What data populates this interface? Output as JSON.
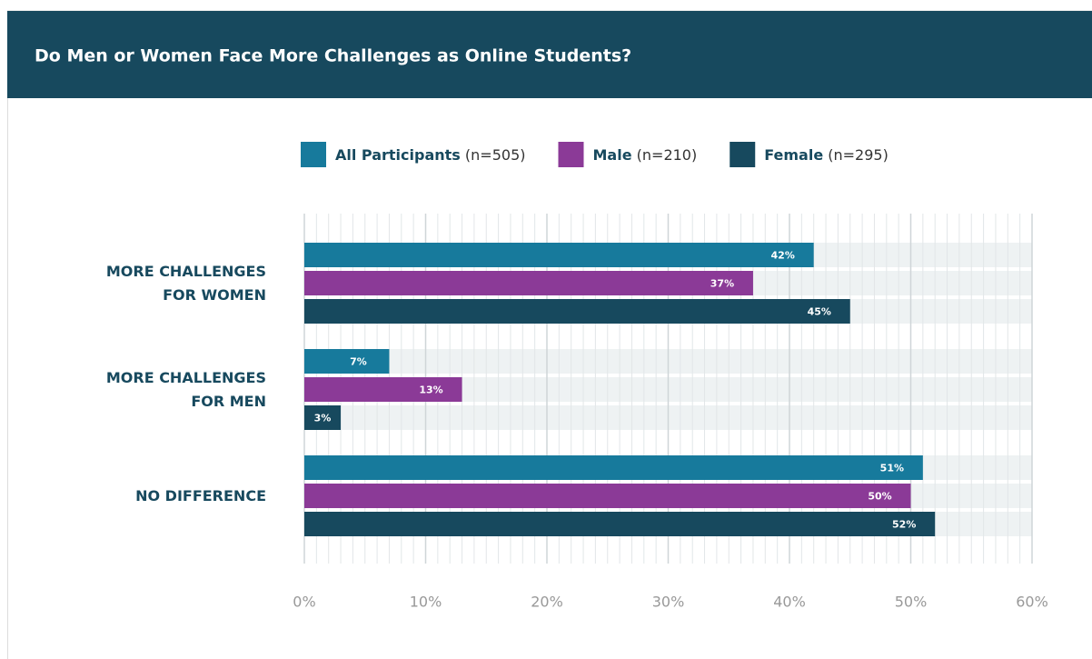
{
  "chart_data": {
    "type": "bar",
    "orientation": "horizontal",
    "title": "Do Men or Women Face More Challenges as Online Students?",
    "categories": [
      "MORE CHALLENGES FOR WOMEN",
      "MORE CHALLENGES FOR MEN",
      "NO DIFFERENCE"
    ],
    "series": [
      {
        "name": "All Participants",
        "sample": "(n=505)",
        "color": "#177a9c",
        "values": [
          42,
          7,
          51
        ],
        "value_labels": [
          "42%",
          "7%",
          "51%"
        ]
      },
      {
        "name": "Male",
        "sample": "(n=210)",
        "color": "#8b3a97",
        "values": [
          37,
          13,
          50
        ],
        "value_labels": [
          "37%",
          "13%",
          "50%"
        ]
      },
      {
        "name": "Female",
        "sample": "(n=295)",
        "color": "#17495e",
        "values": [
          45,
          3,
          52
        ],
        "value_labels": [
          "45%",
          "3%",
          "52%"
        ]
      }
    ],
    "xlim": [
      0,
      60
    ],
    "xticks": [
      {
        "value": 0,
        "label": "0%"
      },
      {
        "value": 10,
        "label": "10%"
      },
      {
        "value": 20,
        "label": "20%"
      },
      {
        "value": 30,
        "label": "30%"
      },
      {
        "value": 40,
        "label": "40%"
      },
      {
        "value": 50,
        "label": "50%"
      },
      {
        "value": 60,
        "label": "60%"
      }
    ],
    "grid": true
  }
}
